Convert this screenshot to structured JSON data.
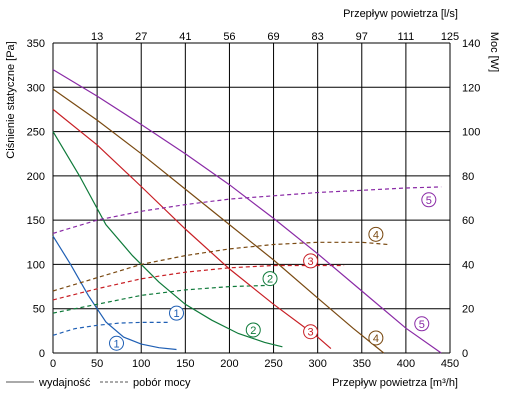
{
  "chart_data": {
    "type": "line",
    "top_axis_title": "Przepływ powietrza  [l/s]",
    "top_ticks": [
      "13",
      "27",
      "41",
      "56",
      "69",
      "83",
      "97",
      "111",
      "125"
    ],
    "ylabel_left": "Ciśnienie statyczne [Pa]",
    "ylabel_right": "Moc [W]",
    "xlabel": "Przepływ powietrza [m³/h]",
    "xlim": [
      0,
      450
    ],
    "ylim_left": [
      0,
      350
    ],
    "ylim_right": [
      0,
      140
    ],
    "x_ticks": [
      0,
      50,
      100,
      150,
      200,
      250,
      300,
      350,
      400,
      450
    ],
    "y_left_ticks": [
      0,
      50,
      100,
      150,
      200,
      250,
      300,
      350
    ],
    "y_right_ticks": [
      0,
      20,
      40,
      60,
      80,
      100,
      120,
      140
    ],
    "grid": true,
    "legend": {
      "position": "bottom-left",
      "solid_label": "wydajność",
      "dashed_label": "pobór mocy"
    },
    "series": [
      {
        "name": "1",
        "color": "#1f5fb4",
        "pressure": [
          [
            0,
            132
          ],
          [
            20,
            100
          ],
          [
            40,
            65
          ],
          [
            60,
            35
          ],
          [
            80,
            18
          ],
          [
            100,
            10
          ],
          [
            120,
            6
          ],
          [
            140,
            4
          ]
        ],
        "power": [
          [
            0,
            8
          ],
          [
            25,
            11
          ],
          [
            50,
            12.5
          ],
          [
            75,
            13.5
          ],
          [
            100,
            13.8
          ],
          [
            130,
            13.8
          ]
        ],
        "pressure_label": {
          "text": "1",
          "x": 72,
          "y": 11
        },
        "power_label": {
          "text": "1",
          "x": 140,
          "y": 45
        }
      },
      {
        "name": "2",
        "color": "#0f7a3a",
        "pressure": [
          [
            0,
            250
          ],
          [
            30,
            200
          ],
          [
            60,
            145
          ],
          [
            90,
            110
          ],
          [
            120,
            80
          ],
          [
            150,
            55
          ],
          [
            180,
            37
          ],
          [
            210,
            22
          ],
          [
            240,
            12
          ],
          [
            260,
            7
          ]
        ],
        "power": [
          [
            0,
            18
          ],
          [
            50,
            22
          ],
          [
            100,
            26
          ],
          [
            150,
            28.5
          ],
          [
            200,
            30
          ],
          [
            240,
            30.5
          ]
        ],
        "pressure_label": {
          "text": "2",
          "x": 227,
          "y": 26
        },
        "power_label": {
          "text": "2",
          "x": 246,
          "y": 84
        }
      },
      {
        "name": "3",
        "color": "#c81f25",
        "pressure": [
          [
            0,
            275
          ],
          [
            50,
            235
          ],
          [
            100,
            188
          ],
          [
            150,
            140
          ],
          [
            200,
            95
          ],
          [
            250,
            55
          ],
          [
            300,
            18
          ],
          [
            315,
            5
          ]
        ],
        "power": [
          [
            0,
            24
          ],
          [
            50,
            29
          ],
          [
            100,
            33.5
          ],
          [
            150,
            36.5
          ],
          [
            200,
            38.5
          ],
          [
            250,
            39.5
          ],
          [
            300,
            39.5
          ],
          [
            330,
            39.5
          ]
        ],
        "pressure_label": {
          "text": "3",
          "x": 292,
          "y": 24
        },
        "power_label": {
          "text": "3",
          "x": 292,
          "y": 104
        }
      },
      {
        "name": "4",
        "color": "#7a4a12",
        "pressure": [
          [
            0,
            298
          ],
          [
            50,
            263
          ],
          [
            100,
            225
          ],
          [
            150,
            185
          ],
          [
            200,
            145
          ],
          [
            250,
            105
          ],
          [
            300,
            62
          ],
          [
            340,
            28
          ],
          [
            375,
            0
          ]
        ],
        "power": [
          [
            0,
            28
          ],
          [
            50,
            34
          ],
          [
            100,
            40
          ],
          [
            150,
            44
          ],
          [
            200,
            47
          ],
          [
            250,
            49
          ],
          [
            300,
            50
          ],
          [
            350,
            50
          ],
          [
            380,
            49
          ]
        ],
        "pressure_label": {
          "text": "4",
          "x": 366,
          "y": 17
        },
        "power_label": {
          "text": "4",
          "x": 366,
          "y": 134
        }
      },
      {
        "name": "5",
        "color": "#8a2aa6",
        "pressure": [
          [
            0,
            320
          ],
          [
            50,
            290
          ],
          [
            100,
            258
          ],
          [
            150,
            225
          ],
          [
            200,
            190
          ],
          [
            250,
            152
          ],
          [
            300,
            112
          ],
          [
            350,
            70
          ],
          [
            400,
            28
          ],
          [
            440,
            0
          ]
        ],
        "power": [
          [
            0,
            54
          ],
          [
            50,
            60
          ],
          [
            100,
            64
          ],
          [
            150,
            67
          ],
          [
            200,
            69.5
          ],
          [
            250,
            71
          ],
          [
            300,
            72.5
          ],
          [
            350,
            73.5
          ],
          [
            400,
            74.5
          ],
          [
            440,
            75
          ]
        ],
        "pressure_label": {
          "text": "5",
          "x": 418,
          "y": 33
        },
        "power_label": {
          "text": "5",
          "x": 426,
          "y": 173
        }
      }
    ]
  }
}
